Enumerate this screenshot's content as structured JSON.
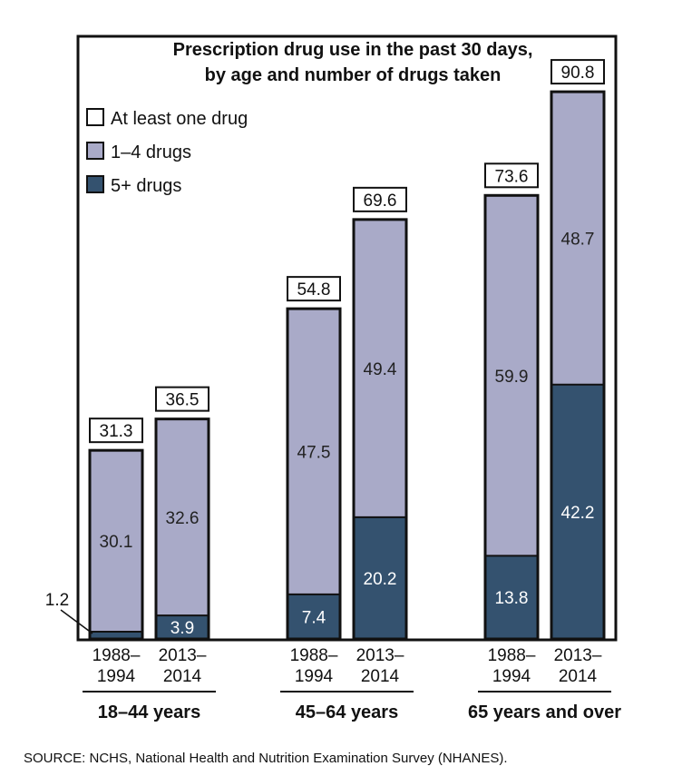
{
  "chart_data": {
    "type": "bar",
    "stacked": true,
    "title_lines": [
      "Prescription drug use in the past 30 days,",
      "by age and number of drugs taken"
    ],
    "legend": [
      {
        "name": "At least one drug",
        "color": "#ffffff"
      },
      {
        "name": "1–4 drugs",
        "color": "#a9aac8"
      },
      {
        "name": "5+ drugs",
        "color": "#34526f"
      }
    ],
    "legend_position": "top-left",
    "groups": [
      {
        "label": "18–44 years",
        "bars": [
          {
            "period": [
              "1988–",
              "1994"
            ],
            "five_plus": 1.2,
            "one_to_four": 30.1,
            "total": 31.3
          },
          {
            "period": [
              "2013–",
              "2014"
            ],
            "five_plus": 3.9,
            "one_to_four": 32.6,
            "total": 36.5
          }
        ]
      },
      {
        "label": "45–64 years",
        "bars": [
          {
            "period": [
              "1988–",
              "1994"
            ],
            "five_plus": 7.4,
            "one_to_four": 47.5,
            "total": 54.8
          },
          {
            "period": [
              "2013–",
              "2014"
            ],
            "five_plus": 20.2,
            "one_to_four": 49.4,
            "total": 69.6
          }
        ]
      },
      {
        "label": "65 years and over",
        "bars": [
          {
            "period": [
              "1988–",
              "1994"
            ],
            "five_plus": 13.8,
            "one_to_four": 59.9,
            "total": 73.6
          },
          {
            "period": [
              "2013–",
              "2014"
            ],
            "five_plus": 42.2,
            "one_to_four": 48.7,
            "total": 90.8
          }
        ]
      }
    ],
    "outside_label": "1.2",
    "ylim": [
      0,
      100
    ],
    "grid": false
  },
  "source_note": "SOURCE: NCHS, National Health and Nutrition Examination Survey (NHANES)."
}
